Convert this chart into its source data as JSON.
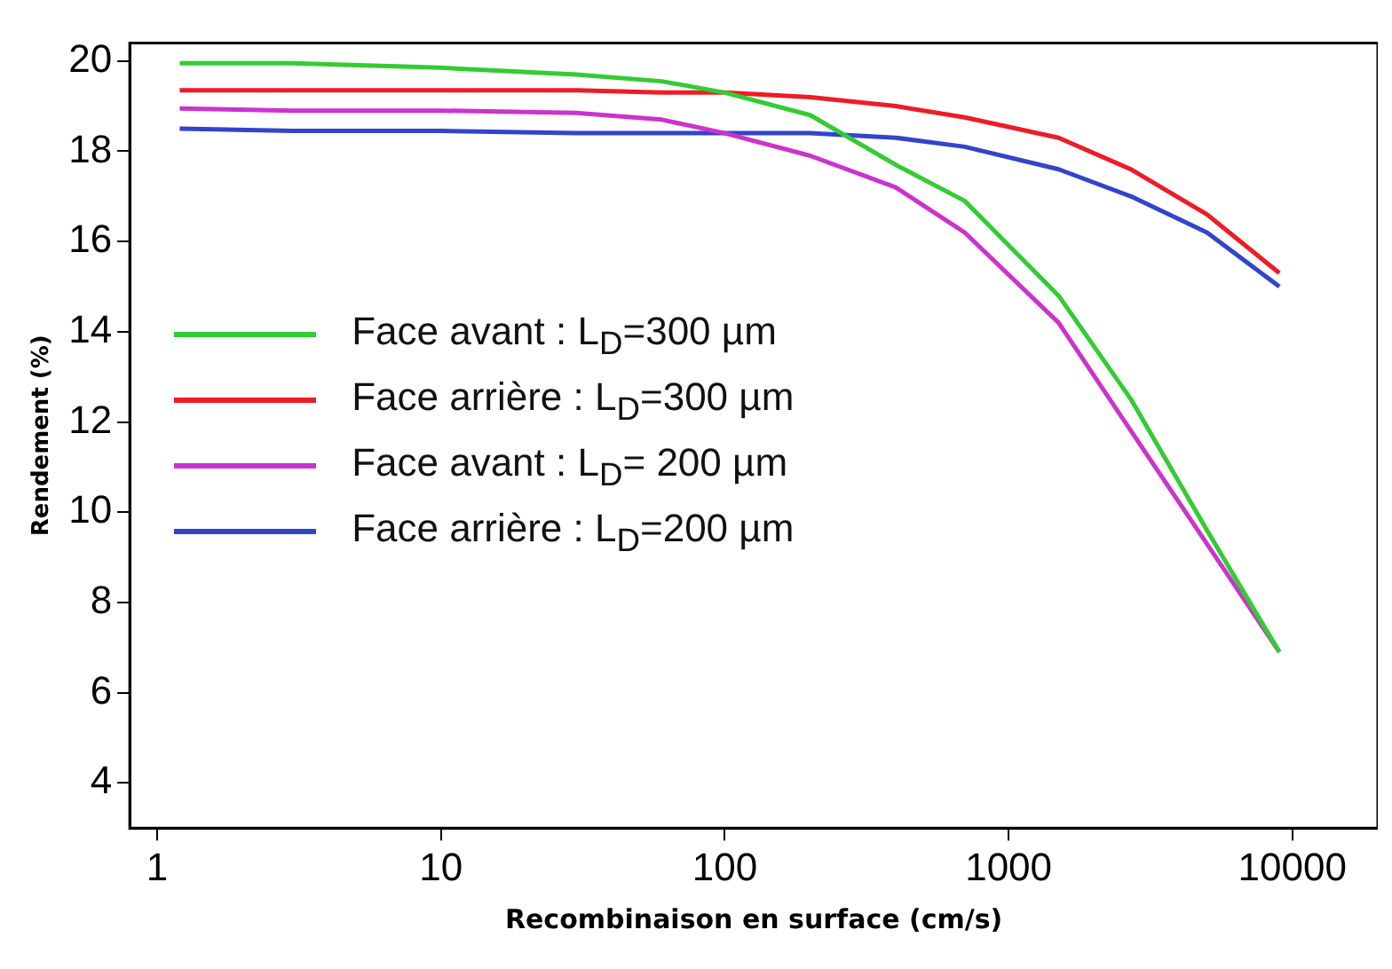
{
  "chart_data": {
    "type": "line",
    "xlabel": "Recombinaison en surface (cm/s)",
    "ylabel": "Rendement (%)",
    "x": [
      1.2,
      3,
      10,
      30,
      60,
      100,
      200,
      400,
      700,
      1500,
      2700,
      5000,
      9000
    ],
    "series": [
      {
        "name": "Face avant : L$_{D}$=300 µm",
        "color": "#33cc33",
        "values": [
          19.95,
          19.95,
          19.85,
          19.7,
          19.55,
          19.3,
          18.8,
          17.7,
          16.9,
          14.8,
          12.5,
          9.6,
          6.9
        ]
      },
      {
        "name": "Face arrière : L$_{D}$=300 µm",
        "color": "#ee1c24",
        "values": [
          19.35,
          19.35,
          19.35,
          19.35,
          19.3,
          19.3,
          19.2,
          19.0,
          18.75,
          18.3,
          17.6,
          16.6,
          15.3
        ]
      },
      {
        "name": "Face avant : L$_{D}$= 200 µm",
        "color": "#cc33cc",
        "values": [
          18.95,
          18.9,
          18.9,
          18.85,
          18.7,
          18.4,
          17.9,
          17.2,
          16.2,
          14.2,
          11.8,
          9.3,
          6.9
        ]
      },
      {
        "name": "Face arrière : L$_{D}$=200 µm",
        "color": "#3344cc",
        "values": [
          18.5,
          18.45,
          18.45,
          18.4,
          18.4,
          18.4,
          18.4,
          18.3,
          18.1,
          17.6,
          17.0,
          16.2,
          15.0
        ]
      }
    ],
    "log": "x",
    "xlim": [
      0.8,
      20000
    ],
    "xticks": [
      1,
      10,
      100,
      1000,
      10000
    ],
    "ylim": [
      3,
      20.4
    ],
    "yticks": [
      4,
      6,
      8,
      10,
      12,
      14,
      16,
      18,
      20
    ],
    "grid": false,
    "legend": "left",
    "marker": "none",
    "line_style": "solid"
  }
}
